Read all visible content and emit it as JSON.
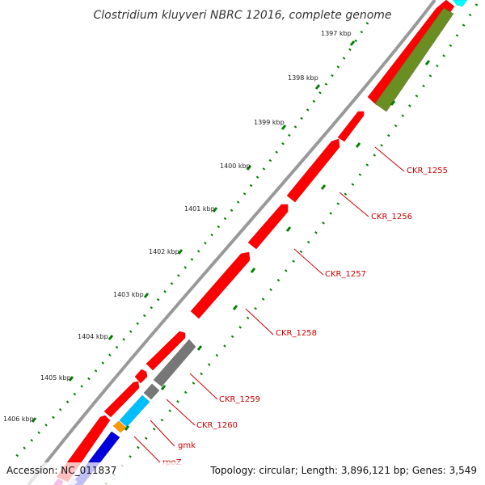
{
  "title": "Clostridium kluyveri NBRC 12016, complete genome",
  "footer": {
    "accession": "Accession: NC_011837",
    "summary": "Topology: circular; Length: 3,896,121 bp; Genes: 3,549"
  },
  "colors": {
    "gene_red": "#ff0000",
    "gene_olive": "#6b8e23",
    "gene_gray": "#777777",
    "gene_sky": "#00bfff",
    "gene_orange": "#ff9900",
    "gene_blue": "#0000dd",
    "gene_cyan": "#00ffff",
    "backbone": "#888888",
    "ticks": "#008000",
    "label": "#cc0000"
  },
  "kbp_labels": [
    "1397 kbp",
    "1398 kbp",
    "1399 kbp",
    "1400 kbp",
    "1401 kbp",
    "1402 kbp",
    "1403 kbp",
    "1404 kbp",
    "1405 kbp",
    "1406 kbp"
  ],
  "gene_labels": [
    "CKR_1255",
    "CKR_1256",
    "CKR_1257",
    "CKR_1258",
    "CKR_1259",
    "CKR_1260",
    "gmk",
    "rpoZ"
  ]
}
